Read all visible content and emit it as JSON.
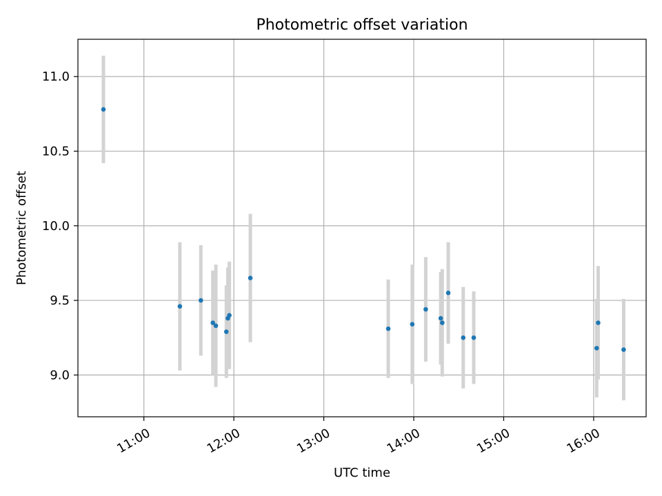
{
  "chart_data": {
    "type": "scatter",
    "title": "Photometric offset variation",
    "xlabel": "UTC time",
    "ylabel": "Photometric offset",
    "xlim": [
      "10:16",
      "16:35"
    ],
    "ylim": [
      8.72,
      11.25
    ],
    "grid": true,
    "x_ticks": [
      "11:00",
      "12:00",
      "13:00",
      "14:00",
      "15:00",
      "16:00"
    ],
    "y_ticks": [
      "9.0",
      "9.5",
      "10.0",
      "10.5",
      "11.0"
    ],
    "colors": {
      "points": "#1f77b4",
      "errorbars": "#d3d3d3",
      "grid": "#b0b0b0"
    },
    "points": [
      {
        "x": "10:33",
        "y": 10.78,
        "err": 0.36
      },
      {
        "x": "11:24",
        "y": 9.46,
        "err": 0.43
      },
      {
        "x": "11:38",
        "y": 9.5,
        "err": 0.37
      },
      {
        "x": "11:46",
        "y": 9.35,
        "err": 0.35
      },
      {
        "x": "11:48",
        "y": 9.33,
        "err": 0.41
      },
      {
        "x": "11:55",
        "y": 9.29,
        "err": 0.31
      },
      {
        "x": "11:56",
        "y": 9.38,
        "err": 0.34
      },
      {
        "x": "11:57",
        "y": 9.4,
        "err": 0.36
      },
      {
        "x": "12:11",
        "y": 9.65,
        "err": 0.43
      },
      {
        "x": "13:43",
        "y": 9.31,
        "err": 0.33
      },
      {
        "x": "13:59",
        "y": 9.34,
        "err": 0.4
      },
      {
        "x": "14:08",
        "y": 9.44,
        "err": 0.35
      },
      {
        "x": "14:18",
        "y": 9.38,
        "err": 0.31
      },
      {
        "x": "14:19",
        "y": 9.35,
        "err": 0.36
      },
      {
        "x": "14:23",
        "y": 9.55,
        "err": 0.34
      },
      {
        "x": "14:33",
        "y": 9.25,
        "err": 0.34
      },
      {
        "x": "14:40",
        "y": 9.25,
        "err": 0.31
      },
      {
        "x": "16:02",
        "y": 9.18,
        "err": 0.33
      },
      {
        "x": "16:03",
        "y": 9.35,
        "err": 0.38
      },
      {
        "x": "16:20",
        "y": 9.17,
        "err": 0.34
      }
    ]
  }
}
